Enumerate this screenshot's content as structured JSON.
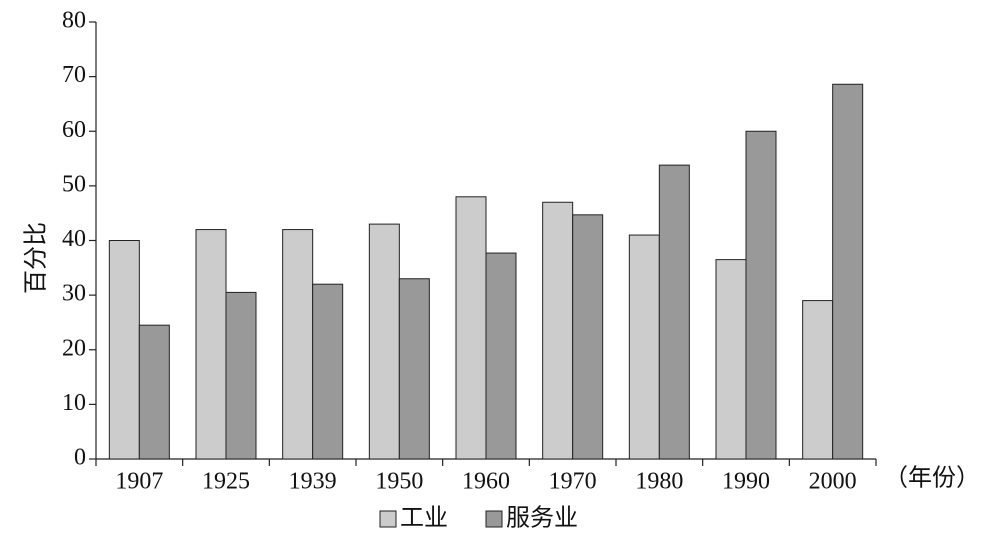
{
  "chart_data": {
    "type": "bar",
    "ylabel": "百分比",
    "xlabel": "（年份）",
    "categories": [
      "1907",
      "1925",
      "1939",
      "1950",
      "1960",
      "1970",
      "1980",
      "1990",
      "2000"
    ],
    "series": [
      {
        "name": "工业",
        "color": "#cccccc",
        "values": [
          40,
          42,
          42,
          43,
          48,
          47,
          41,
          36.5,
          29
        ]
      },
      {
        "name": "服务业",
        "color": "#999999",
        "values": [
          24.5,
          30.5,
          32,
          33,
          37.7,
          44.7,
          53.8,
          60,
          68.6
        ]
      }
    ],
    "ylim": [
      0,
      80
    ],
    "yticks": [
      0,
      10,
      20,
      30,
      40,
      50,
      60,
      70,
      80
    ],
    "grid": false
  }
}
